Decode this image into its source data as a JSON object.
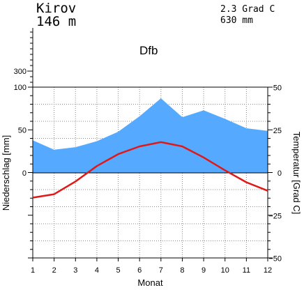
{
  "header": {
    "station": "Kirov",
    "elevation": "146 m",
    "annual_temperature": "2.3 Grad C",
    "annual_precipitation": "630 mm",
    "climate_class": "Dfb"
  },
  "chart_data": {
    "type": "climate-diagram",
    "title": "",
    "xlabel": "Monat",
    "ylabel_left": "Niederschlag [mm]",
    "ylabel_right": "Temperatur [Grad C]",
    "categories": [
      1,
      2,
      3,
      4,
      5,
      6,
      7,
      8,
      9,
      10,
      11,
      12
    ],
    "x_tick_labels": [
      "1",
      "2",
      "3",
      "4",
      "5",
      "6",
      "7",
      "8",
      "9",
      "10",
      "11",
      "12"
    ],
    "left_tick_labels": [
      "0",
      "50",
      "100",
      "300"
    ],
    "right_tick_labels": [
      "−50",
      "−25",
      "0",
      "25",
      "50"
    ],
    "precip_ylim": [
      0,
      100
    ],
    "temp_ylim": [
      -50,
      50
    ],
    "grid": true,
    "series": [
      {
        "kind": "precipitation",
        "type": "area",
        "values": [
          38,
          27,
          30,
          37,
          48,
          66,
          87,
          65,
          73,
          63,
          52,
          49
        ]
      },
      {
        "kind": "temperature",
        "type": "line",
        "values": [
          -14.5,
          -12.5,
          -5,
          4,
          11,
          15.5,
          18,
          15.5,
          9,
          1.5,
          -5.5,
          -10.5
        ]
      }
    ],
    "colors": {
      "precipitation": "#55aaff",
      "temperature": "#e01818",
      "grid": "#888888"
    }
  }
}
